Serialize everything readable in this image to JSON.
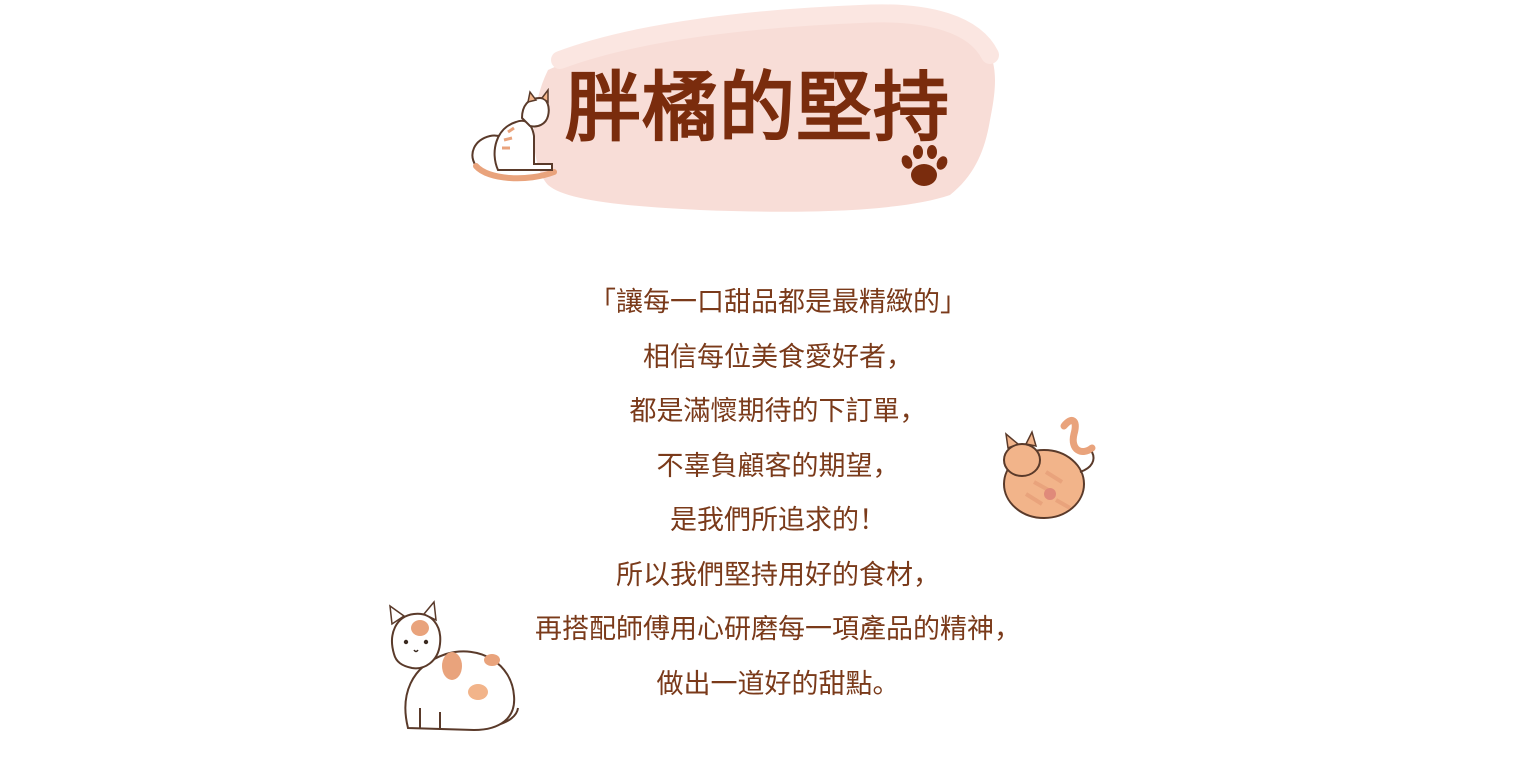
{
  "title": "胖橘的堅持",
  "paragraph": [
    "「讓每一口甜品都是最精緻的」",
    "相信每位美食愛好者，",
    "都是滿懷期待的下訂單，",
    "不辜負顧客的期望，",
    "是我們所追求的！",
    "所以我們堅持用好的食材，",
    "再搭配師傅用心研磨每一項產品的精神，",
    "做出一道好的甜點。"
  ],
  "colors": {
    "title": "#7a2c0d",
    "text": "#7a3a1a",
    "brush": "#f8ddd7",
    "cat_orange": "#f2b48a",
    "cat_patch": "#e9a37c"
  },
  "icons": [
    "paw-print-icon",
    "sitting-cat-illustration",
    "rolling-cat-illustration",
    "calico-cat-illustration"
  ]
}
